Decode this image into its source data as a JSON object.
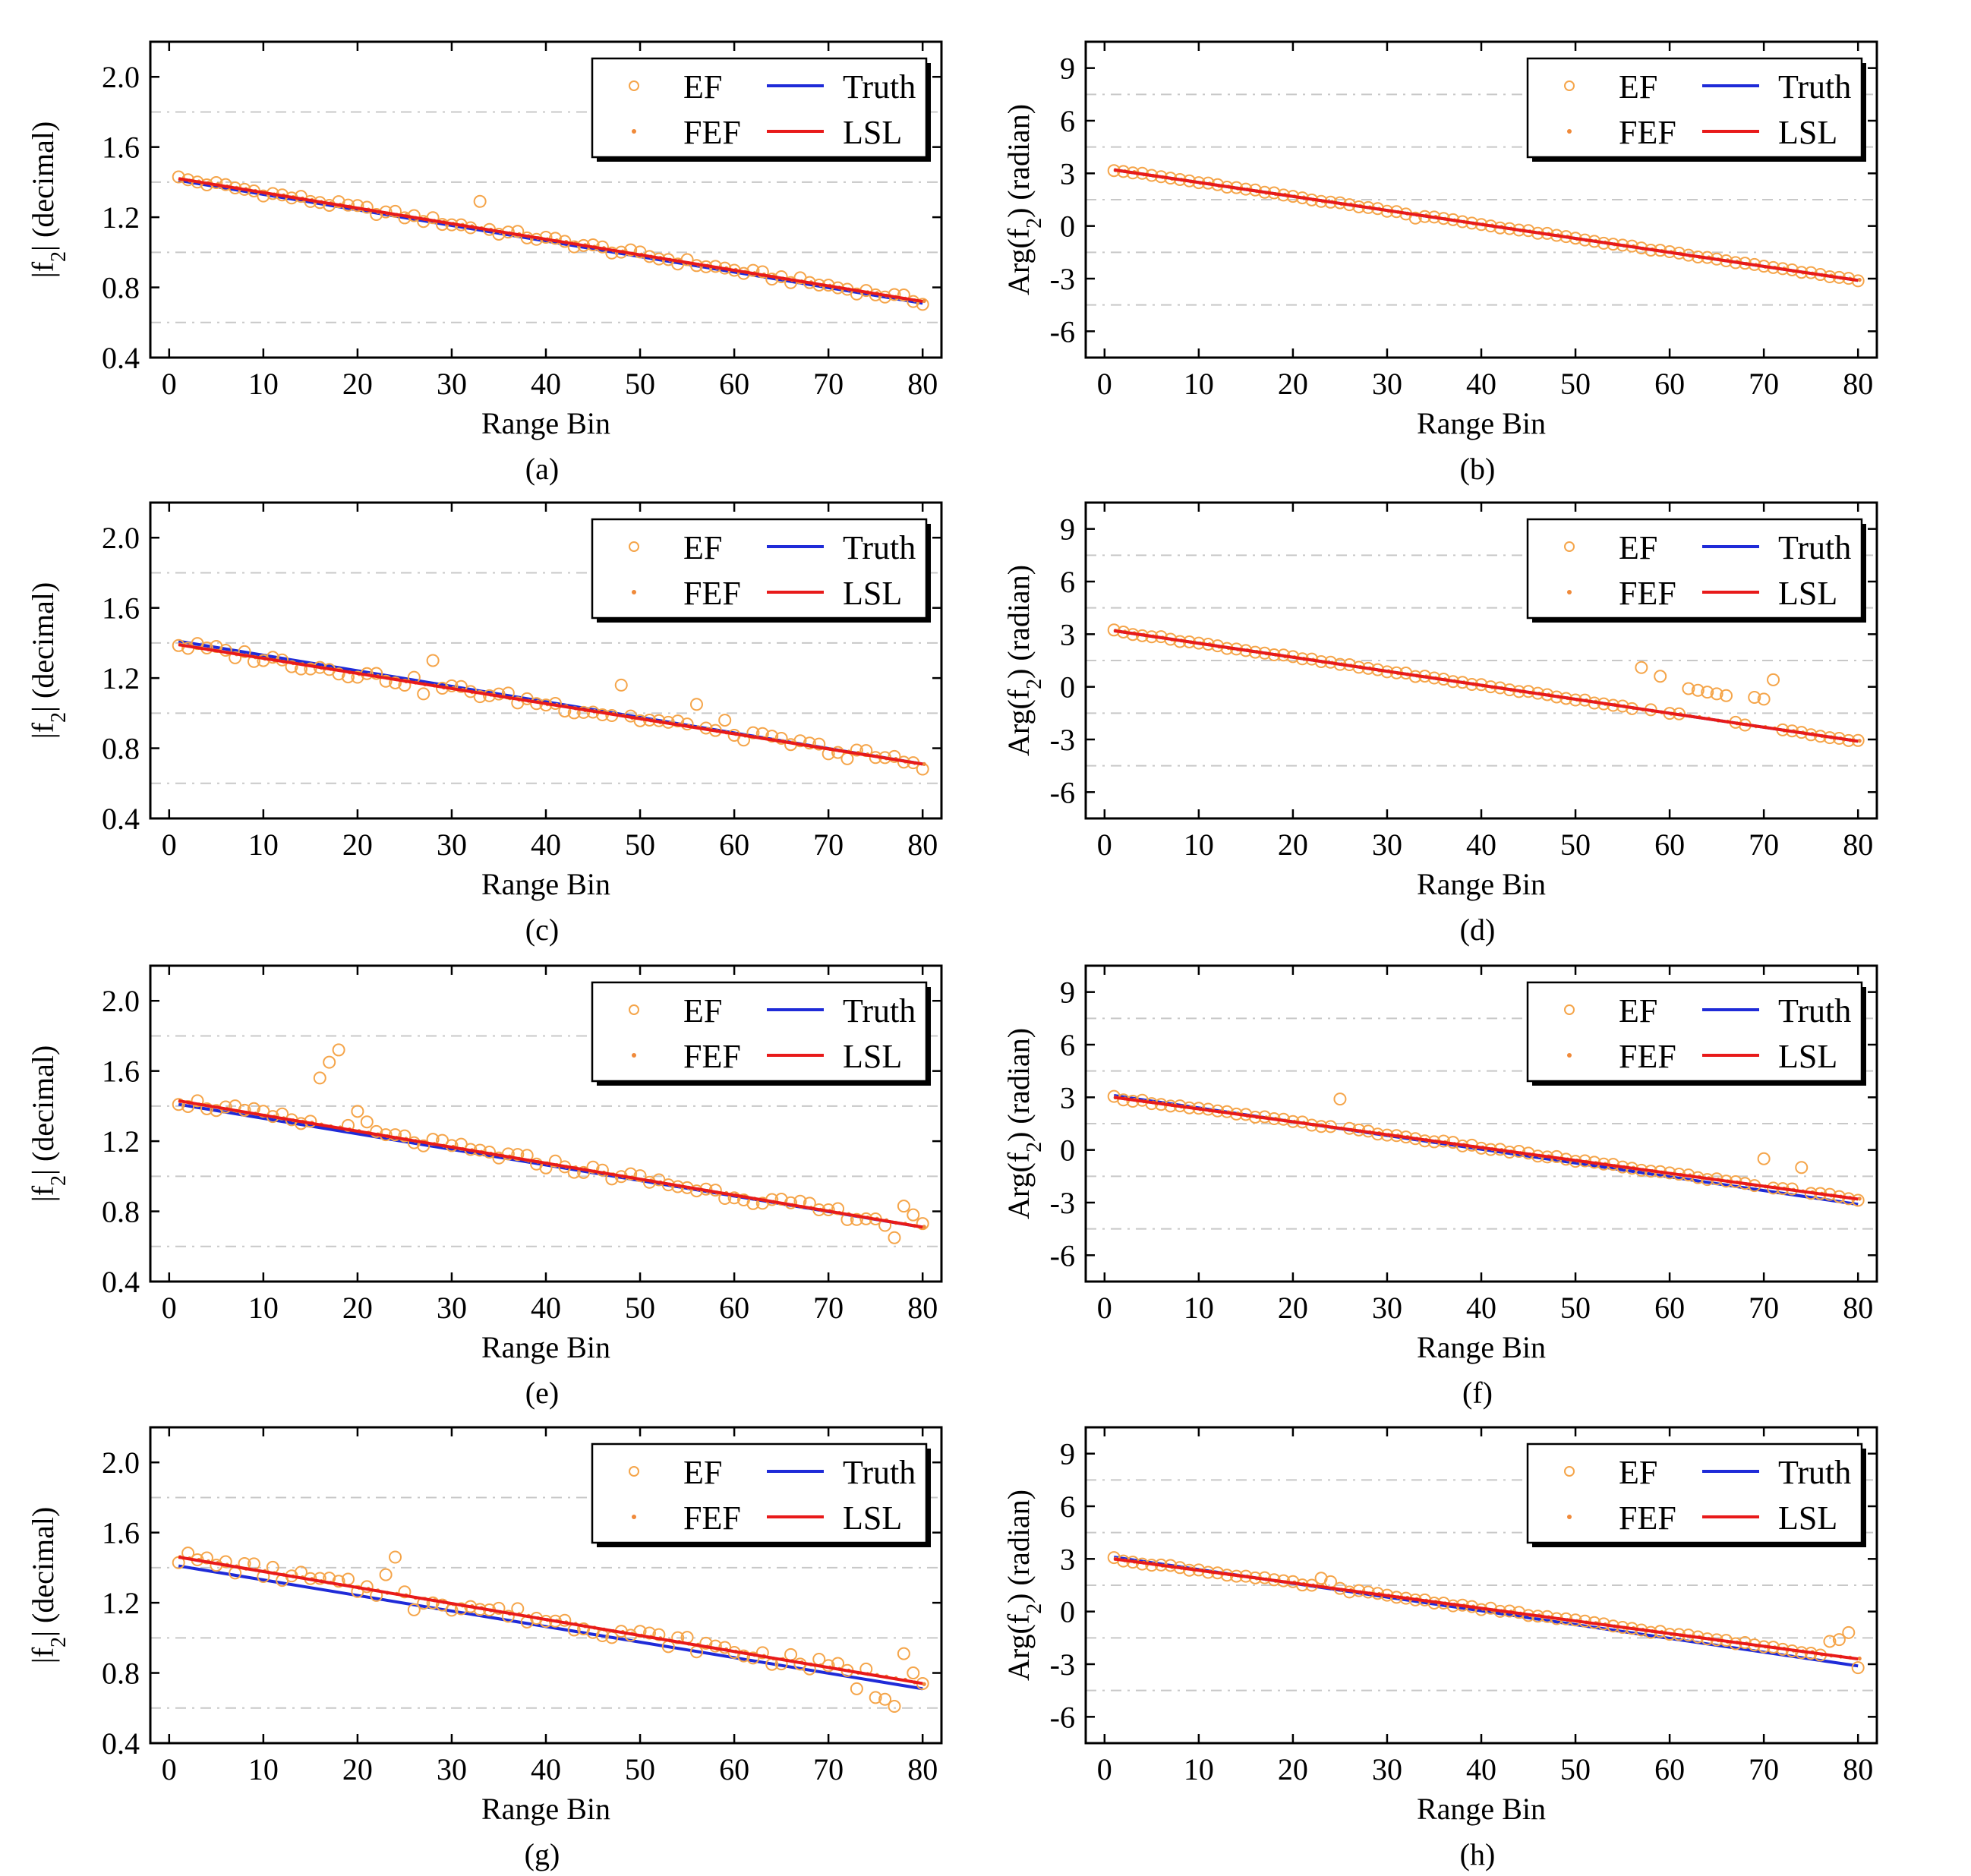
{
  "figure": {
    "colors": {
      "truth": "#1f2bd8",
      "lsl": "#e81a1a",
      "ef": "#f5a54a",
      "fef": "#f08a3a",
      "grid": "#c8c8c8"
    },
    "legend": {
      "ef": "EF",
      "truth": "Truth",
      "fef": "FEF",
      "lsl": "LSL",
      "placement": "top-right"
    },
    "common": {
      "xlabel": "Range Bin",
      "xlim": [
        -2,
        82
      ],
      "xticks": [
        0,
        10,
        20,
        30,
        40,
        50,
        60,
        70,
        80
      ],
      "magnitude": {
        "ylabel_parts": [
          "|f",
          "2",
          "| (decimal)"
        ],
        "ylim": [
          0.4,
          2.2
        ],
        "yticks": [
          "0.4",
          "0.8",
          "1.2",
          "1.6",
          "2.0"
        ],
        "ytick_values": [
          0.4,
          0.8,
          1.2,
          1.6,
          2.0
        ],
        "grid_y": [
          0.6,
          1.0,
          1.4,
          1.8
        ]
      },
      "phase": {
        "ylabel_parts": [
          "Arg(f",
          "2",
          ") (radian)"
        ],
        "ylim": [
          -7.5,
          10.5
        ],
        "yticks": [
          "-6",
          "-3",
          "0",
          "3",
          "6",
          "9"
        ],
        "ytick_values": [
          -6,
          -3,
          0,
          3,
          6,
          9
        ],
        "grid_y": [
          -4.5,
          -1.5,
          1.5,
          4.5,
          7.5
        ]
      }
    }
  },
  "chart_data": [
    {
      "type": "line",
      "panel": "a",
      "caption": "(a)",
      "quantity": "magnitude",
      "truth": [
        [
          1,
          1.41
        ],
        [
          80,
          0.71
        ]
      ],
      "lsl": [
        [
          1,
          1.42
        ],
        [
          80,
          0.72
        ]
      ],
      "ef_noise": 0.02,
      "ef_outliers": [
        [
          33,
          1.29
        ]
      ]
    },
    {
      "type": "line",
      "panel": "b",
      "caption": "(b)",
      "quantity": "phase",
      "truth": [
        [
          1,
          3.2
        ],
        [
          80,
          -3.1
        ]
      ],
      "lsl": [
        [
          1,
          3.2
        ],
        [
          80,
          -3.1
        ]
      ],
      "ef_noise": 0.05,
      "ef_outliers": [
        [
          33,
          0.45
        ]
      ]
    },
    {
      "type": "line",
      "panel": "c",
      "caption": "(c)",
      "quantity": "magnitude",
      "truth": [
        [
          1,
          1.41
        ],
        [
          80,
          0.71
        ]
      ],
      "lsl": [
        [
          1,
          1.39
        ],
        [
          80,
          0.71
        ]
      ],
      "ef_noise": 0.03,
      "ef_outliers": [
        [
          27,
          1.11
        ],
        [
          28,
          1.3
        ],
        [
          48,
          1.16
        ],
        [
          56,
          1.05
        ],
        [
          59,
          0.96
        ],
        [
          72,
          0.74
        ]
      ]
    },
    {
      "type": "line",
      "panel": "d",
      "caption": "(d)",
      "quantity": "phase",
      "truth": [
        [
          1,
          3.2
        ],
        [
          80,
          -3.1
        ]
      ],
      "lsl": [
        [
          1,
          3.2
        ],
        [
          80,
          -3.1
        ]
      ],
      "ef_noise": 0.06,
      "ef_outliers": [
        [
          57,
          1.1
        ],
        [
          59,
          0.6
        ],
        [
          62,
          -0.1
        ],
        [
          63,
          -0.2
        ],
        [
          64,
          -0.3
        ],
        [
          65,
          -0.4
        ],
        [
          66,
          -0.5
        ],
        [
          69,
          -0.6
        ],
        [
          70,
          -0.7
        ],
        [
          71,
          0.4
        ]
      ]
    },
    {
      "type": "line",
      "panel": "e",
      "caption": "(e)",
      "quantity": "magnitude",
      "truth": [
        [
          1,
          1.41
        ],
        [
          80,
          0.71
        ]
      ],
      "lsl": [
        [
          1,
          1.43
        ],
        [
          80,
          0.71
        ]
      ],
      "ef_noise": 0.03,
      "ef_outliers": [
        [
          16,
          1.56
        ],
        [
          17,
          1.65
        ],
        [
          18,
          1.72
        ],
        [
          20,
          1.37
        ],
        [
          21,
          1.31
        ],
        [
          76,
          0.72
        ],
        [
          77,
          0.65
        ],
        [
          78,
          0.83
        ],
        [
          79,
          0.78
        ]
      ]
    },
    {
      "type": "line",
      "panel": "f",
      "caption": "(f)",
      "quantity": "phase",
      "truth": [
        [
          1,
          3.1
        ],
        [
          80,
          -3.1
        ]
      ],
      "lsl": [
        [
          1,
          3.0
        ],
        [
          80,
          -2.8
        ]
      ],
      "ef_noise": 0.08,
      "ef_outliers": [
        [
          25,
          2.9
        ],
        [
          70,
          -0.5
        ],
        [
          74,
          -1.0
        ]
      ]
    },
    {
      "type": "line",
      "panel": "g",
      "caption": "(g)",
      "quantity": "magnitude",
      "truth": [
        [
          1,
          1.41
        ],
        [
          80,
          0.71
        ]
      ],
      "lsl": [
        [
          1,
          1.46
        ],
        [
          80,
          0.74
        ]
      ],
      "ef_noise": 0.04,
      "ef_outliers": [
        [
          23,
          1.36
        ],
        [
          24,
          1.46
        ],
        [
          26,
          1.16
        ],
        [
          73,
          0.71
        ],
        [
          75,
          0.66
        ],
        [
          76,
          0.65
        ],
        [
          77,
          0.61
        ],
        [
          78,
          0.91
        ],
        [
          79,
          0.8
        ]
      ]
    },
    {
      "type": "line",
      "panel": "h",
      "caption": "(h)",
      "quantity": "phase",
      "truth": [
        [
          1,
          3.1
        ],
        [
          80,
          -3.1
        ]
      ],
      "lsl": [
        [
          1,
          3.0
        ],
        [
          80,
          -2.7
        ]
      ],
      "ef_noise": 0.08,
      "ef_outliers": [
        [
          23,
          1.9
        ],
        [
          24,
          1.7
        ],
        [
          77,
          -1.7
        ],
        [
          78,
          -1.6
        ],
        [
          79,
          -1.2
        ],
        [
          80,
          -3.2
        ]
      ]
    }
  ]
}
